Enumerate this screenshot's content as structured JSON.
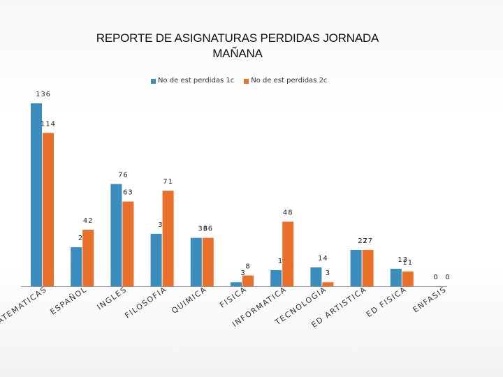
{
  "chart_data": {
    "type": "bar",
    "title_line1": "REPORTE DE ASIGNATURAS PERDIDAS JORNADA",
    "title_line2": "MAÑANA",
    "categories": [
      "MATEMATICAS",
      "ESPAÑOL",
      "INGLES",
      "FILOSOFIA",
      "QUIMICA",
      "FISICA",
      "INFORMATICA",
      "TECNOLOGIA",
      "ED ARTISTICA",
      "ED FISICA",
      "ENFASIS"
    ],
    "series": [
      {
        "name": "No de est perdidas 1c",
        "color": "#3a8dbd",
        "values": [
          136,
          29,
          76,
          39,
          36,
          3,
          12,
          14,
          27,
          13,
          0
        ]
      },
      {
        "name": "No de est perdidas 2c",
        "color": "#e8702a",
        "values": [
          114,
          42,
          63,
          71,
          36,
          8,
          48,
          3,
          27,
          11,
          0
        ]
      }
    ],
    "legend_position": "top-center",
    "grid": false
  }
}
